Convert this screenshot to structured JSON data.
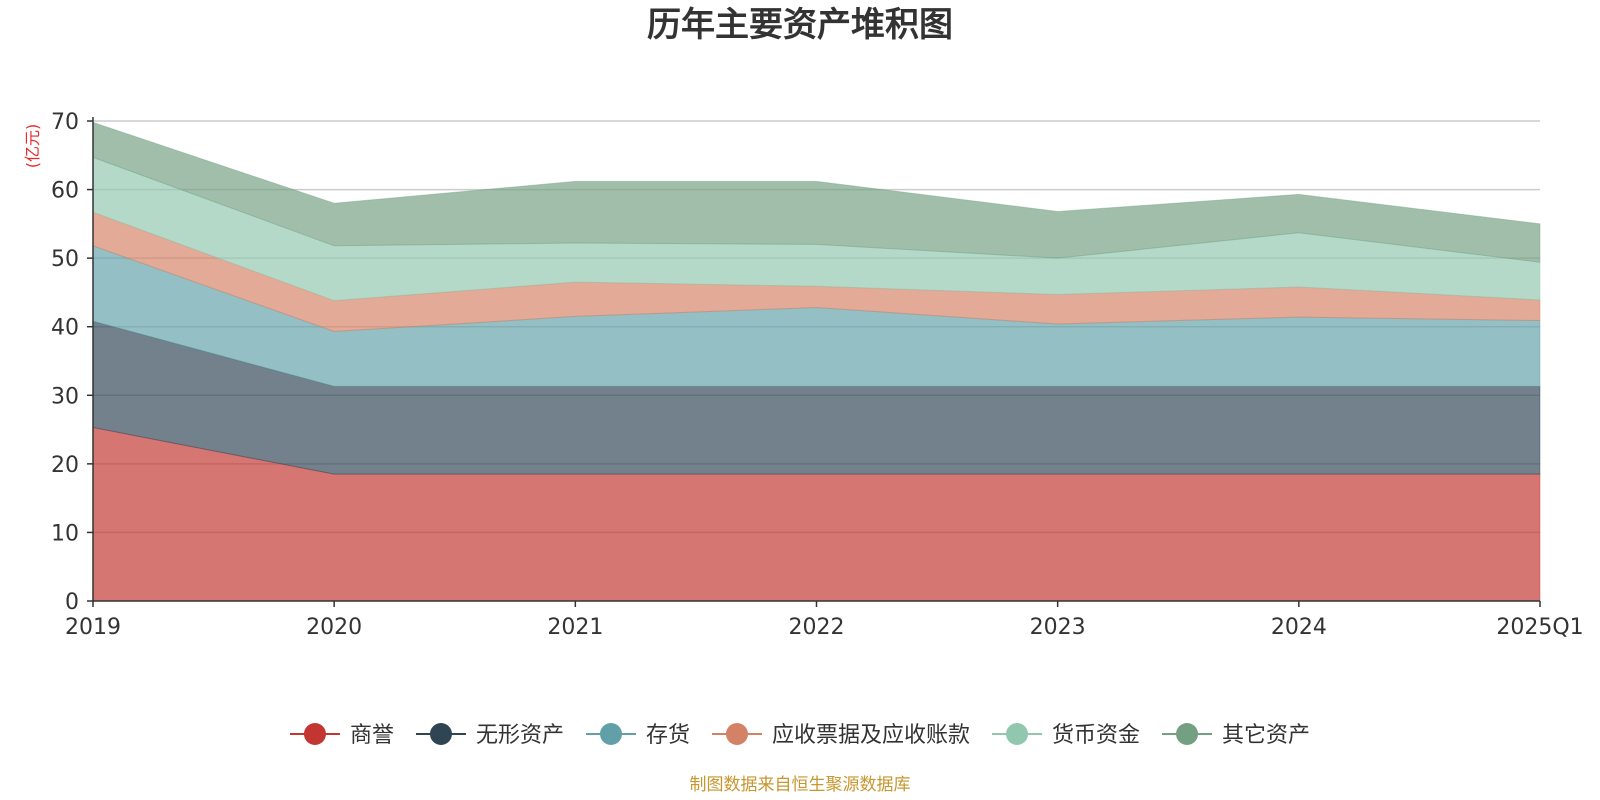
{
  "chart_data": {
    "type": "area",
    "stacked": true,
    "title": "历年主要资产堆积图",
    "ylabel": "(亿元)",
    "xlabel": "",
    "categories": [
      "2019",
      "2020",
      "2021",
      "2022",
      "2023",
      "2024",
      "2025Q1"
    ],
    "ylim": [
      0,
      70
    ],
    "yticks": [
      "0",
      "10",
      "20",
      "30",
      "40",
      "50",
      "60",
      "70"
    ],
    "grid": true,
    "legend_position": "bottom",
    "series": [
      {
        "name": "商誉",
        "color": "#c23531",
        "values": [
          25.3,
          18.5,
          18.5,
          18.5,
          18.5,
          18.5,
          18.5
        ]
      },
      {
        "name": "无形资产",
        "color": "#2f4554",
        "values": [
          15.5,
          12.8,
          12.8,
          12.8,
          12.8,
          12.8,
          12.8
        ]
      },
      {
        "name": "存货",
        "color": "#61a0a8",
        "values": [
          11.0,
          8.0,
          10.2,
          11.5,
          9.1,
          10.1,
          9.6
        ]
      },
      {
        "name": "应收票据及应收账款",
        "color": "#d48265",
        "values": [
          4.9,
          4.5,
          5.0,
          3.1,
          4.3,
          4.4,
          3.0
        ]
      },
      {
        "name": "货币资金",
        "color": "#91c7ae",
        "values": [
          8.0,
          8.0,
          5.7,
          6.1,
          5.3,
          7.9,
          5.5
        ]
      },
      {
        "name": "其它资产",
        "color": "#749f83",
        "values": [
          5.1,
          6.2,
          9.0,
          9.2,
          6.8,
          5.6,
          5.6
        ]
      }
    ]
  },
  "footer": {
    "source": "制图数据来自恒生聚源数据库"
  }
}
